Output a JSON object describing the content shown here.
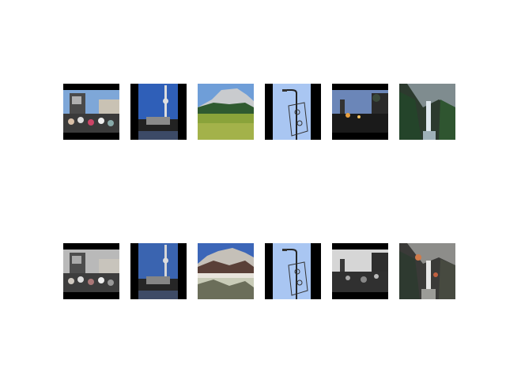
{
  "figure": {
    "rows": [
      {
        "role": "original",
        "images": [
          {
            "subject": "crowd-clock-tower-scene",
            "colors": {
              "sky": "#7ea7d8",
              "dark": "#1a1a1a"
            }
          },
          {
            "subject": "tv-tower-world-clock",
            "colors": {
              "sky": "#2f5fb8",
              "dark": "#151515"
            }
          },
          {
            "subject": "granite-cliff-meadow",
            "colors": {
              "sky": "#6f9ed8",
              "grass": "#8aa33a"
            }
          },
          {
            "subject": "street-lamp-sign",
            "colors": {
              "sky": "#a9c6f2",
              "dark": "#101010"
            }
          },
          {
            "subject": "dusk-city-street",
            "colors": {
              "sky": "#6b86b8",
              "dark": "#0d0d0d"
            }
          },
          {
            "subject": "waterfall-forest",
            "colors": {
              "rock": "#5d6a5a",
              "water": "#dfe8ef"
            }
          }
        ]
      },
      {
        "role": "reconstruction",
        "images": [
          {
            "subject": "crowd-clock-tower-scene-gray",
            "colors": {
              "sky": "#b9b9b9",
              "dark": "#1c1c1c"
            }
          },
          {
            "subject": "tv-tower-world-clock",
            "colors": {
              "sky": "#3a64b0",
              "dark": "#151515"
            }
          },
          {
            "subject": "cliff-meadow-distorted",
            "colors": {
              "sky": "#3c66b8",
              "grass": "#c9ccb8"
            }
          },
          {
            "subject": "street-lamp-sign",
            "colors": {
              "sky": "#a9c6f2",
              "dark": "#101010"
            }
          },
          {
            "subject": "dusk-city-street-gray",
            "colors": {
              "sky": "#d6d6d6",
              "dark": "#0e0e0e"
            }
          },
          {
            "subject": "waterfall-forest-noisy",
            "colors": {
              "rock": "#555a55",
              "water": "#e8e8e8"
            }
          }
        ]
      }
    ]
  }
}
